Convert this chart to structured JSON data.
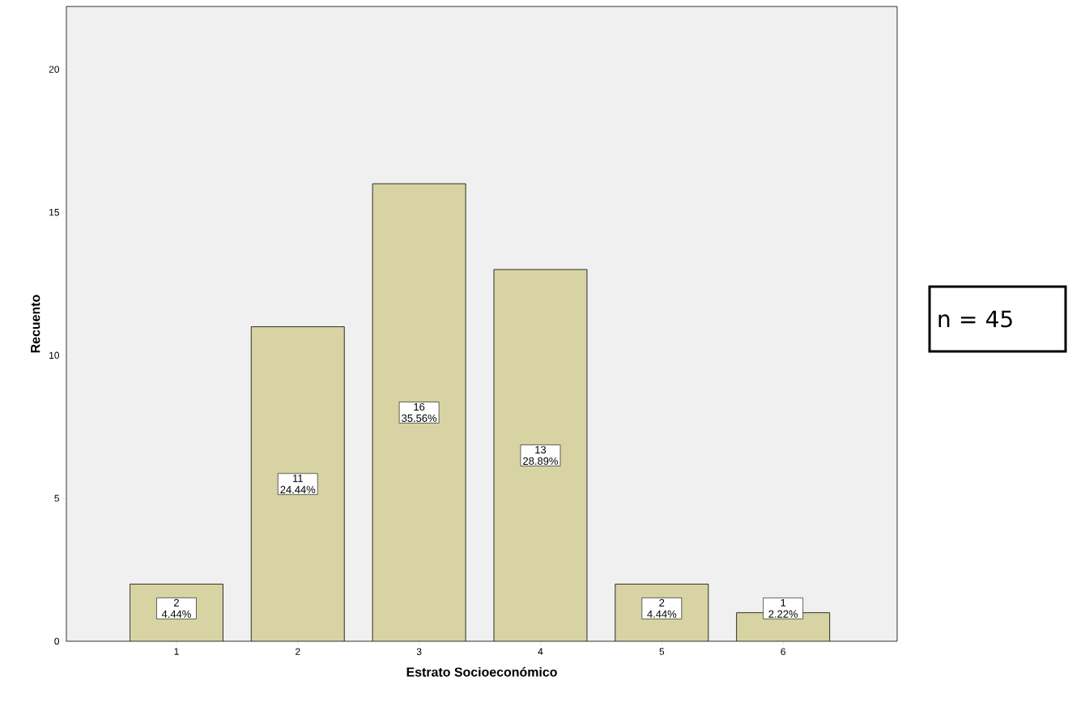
{
  "chart_data": {
    "type": "bar",
    "xlabel": "Estrato Socioeconómico",
    "ylabel": "Recuento",
    "categories": [
      "1",
      "2",
      "3",
      "4",
      "5",
      "6"
    ],
    "values": [
      2,
      11,
      16,
      13,
      2,
      1
    ],
    "color": "#d8d3a3",
    "value_labels": [
      "2 4.44%",
      "11 24.44%",
      "16 35.56%",
      "13 28.89%",
      "2 4.44%",
      "1 2.22%"
    ],
    "ylim": [
      0,
      22.2
    ],
    "yticks": [
      0,
      5,
      10,
      15,
      20
    ],
    "annotations": [
      "n = 45"
    ]
  }
}
